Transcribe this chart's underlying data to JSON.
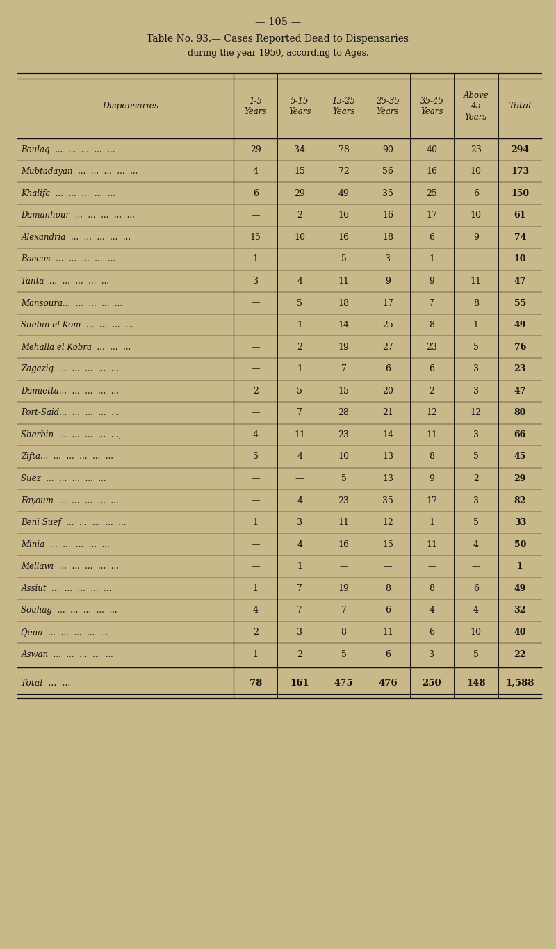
{
  "page_number": "— 105 —",
  "title_line1": "Table No. 93.— Cases Reported Dead to Dispensaries",
  "title_line2": "during the year 1950, according to Ages.",
  "col_header_disp": "Dispensaries",
  "col_headers": [
    "1-5\nYears",
    "5-15\nYears",
    "15-25\nYears",
    "25-35\nYears",
    "35-45\nYears",
    "Above\n45\nYears",
    "Total"
  ],
  "rows": [
    [
      "Boulaq  ...  ...  ...  ...  ...",
      "29",
      "34",
      "78",
      "90",
      "40",
      "23",
      "294"
    ],
    [
      "Mubtadayan  ...  ...  ...  ...  ...",
      "4",
      "15",
      "72",
      "56",
      "16",
      "10",
      "173"
    ],
    [
      "Khalifa  ...  ...  ...  ...  ...",
      "6",
      "29",
      "49",
      "35",
      "25",
      "6",
      "150"
    ],
    [
      "Damanhour  ...  ...  ...  ...  ...",
      "—",
      "2",
      "16",
      "16",
      "17",
      "10",
      "61"
    ],
    [
      "Alexandria  ...  ...  ...  ...  ...",
      "15",
      "10",
      "16",
      "18",
      "6",
      "9",
      "74"
    ],
    [
      "Baccus  ...  ...  ...  ...  ...",
      "1",
      "—",
      "5",
      "3",
      "1",
      "—",
      "10"
    ],
    [
      "Tanta  ...  ...  ...  ...  ...",
      "3",
      "4",
      "11",
      "9",
      "9",
      "11",
      "47"
    ],
    [
      "Mansoura...  ...  ...  ...  ...",
      "—",
      "5",
      "18",
      "17",
      "7",
      "8",
      "55"
    ],
    [
      "Shebin el Kom  ...  ...  ...  ...",
      "—",
      "1",
      "14",
      "25",
      "8",
      "1",
      "49"
    ],
    [
      "Mehalla el Kobra  ...  ...  ...",
      "—",
      "2",
      "19",
      "27",
      "23",
      "5",
      "76"
    ],
    [
      "Zagazig  ...  ...  ...  ...  ...",
      "—",
      "1",
      "7",
      "6",
      "6",
      "3",
      "23"
    ],
    [
      "Damietta...  ...  ...  ...  ...",
      "2",
      "5",
      "15",
      "20",
      "2",
      "3",
      "47"
    ],
    [
      "Port-Said...  ...  ...  ...  ...",
      "—",
      "7",
      "28",
      "21",
      "12",
      "12",
      "80"
    ],
    [
      "Sherbin  ...  ...  ...  ...  ...,",
      "4",
      "11",
      "23",
      "14",
      "11",
      "3",
      "66"
    ],
    [
      "Zifta...  ...  ...  ...  ...  ...",
      "5",
      "4",
      "10",
      "13",
      "8",
      "5",
      "45"
    ],
    [
      "Suez  ...  ...  ...  ...  ...",
      "—",
      "—",
      "5",
      "13",
      "9",
      "2",
      "29"
    ],
    [
      "Fayoum  ...  ...  ...  ...  ...",
      "—",
      "4",
      "23",
      "35",
      "17",
      "3",
      "82"
    ],
    [
      "Beni Suef  ...  ...  ...  ...  ...",
      "1",
      "3",
      "11",
      "12",
      "1",
      "5",
      "33"
    ],
    [
      "Minia  ...  ...  ...  ...  ...",
      "—",
      "4",
      "16",
      "15",
      "11",
      "4",
      "50"
    ],
    [
      "Mellawi  ...  ...  ...  ...  ...",
      "—",
      "1",
      "—",
      "—",
      "—",
      "—",
      "1"
    ],
    [
      "Assiut  ...  ...  ...  ...  ...",
      "1",
      "7",
      "19",
      "8",
      "8",
      "6",
      "49"
    ],
    [
      "Souhag  ...  ...  ...  ...  ...",
      "4",
      "7",
      "7",
      "6",
      "4",
      "4",
      "32"
    ],
    [
      "Qena  ...  ...  ...  ...  ...",
      "2",
      "3",
      "8",
      "11",
      "6",
      "10",
      "40"
    ],
    [
      "Aswan  ...  ...  ...  ...  ...",
      "1",
      "2",
      "5",
      "6",
      "3",
      "5",
      "22"
    ]
  ],
  "total_row": [
    "Total  ...  ...",
    "78",
    "161",
    "475",
    "476",
    "250",
    "148",
    "1,588"
  ],
  "bg_color": "#c8b88a",
  "text_color": "#111111",
  "line_color": "#111111",
  "fig_width": 8.0,
  "fig_height": 13.65,
  "dpi": 100
}
